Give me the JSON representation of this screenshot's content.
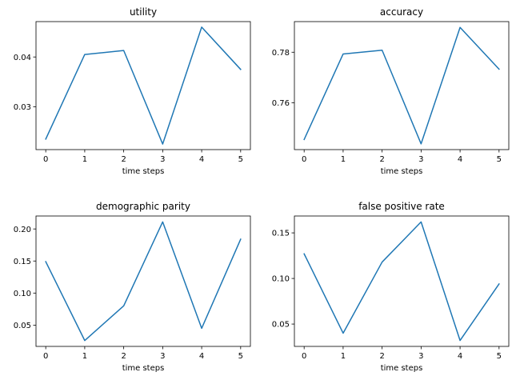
{
  "figure": {
    "background": "#ffffff",
    "line_color": "#1f77b4"
  },
  "chart_data": [
    {
      "type": "line",
      "title": "utility",
      "xlabel": "time steps",
      "ylabel": "",
      "x": [
        0,
        1,
        2,
        3,
        4,
        5
      ],
      "y": [
        0.0235,
        0.0405,
        0.0413,
        0.0225,
        0.046,
        0.0375
      ],
      "xticks": [
        0,
        1,
        2,
        3,
        4,
        5
      ],
      "xlim": [
        -0.25,
        5.25
      ],
      "yticks": [
        0.03,
        0.04
      ],
      "ytick_labels": [
        "0.03",
        "0.04"
      ],
      "ylim": [
        0.02138,
        0.04711
      ],
      "grid": false
    },
    {
      "type": "line",
      "title": "accuracy",
      "xlabel": "time steps",
      "ylabel": "",
      "x": [
        0,
        1,
        2,
        3,
        4,
        5
      ],
      "y": [
        0.7455,
        0.7793,
        0.7808,
        0.7438,
        0.7898,
        0.7733
      ],
      "xticks": [
        0,
        1,
        2,
        3,
        4,
        5
      ],
      "xlim": [
        -0.25,
        5.25
      ],
      "yticks": [
        0.76,
        0.78
      ],
      "ytick_labels": [
        "0.76",
        "0.78"
      ],
      "ylim": [
        0.74152,
        0.7921
      ],
      "grid": false
    },
    {
      "type": "line",
      "title": "demographic parity",
      "xlabel": "time steps",
      "ylabel": "",
      "x": [
        0,
        1,
        2,
        3,
        4,
        5
      ],
      "y": [
        0.149,
        0.026,
        0.08,
        0.211,
        0.045,
        0.184
      ],
      "xticks": [
        0,
        1,
        2,
        3,
        4,
        5
      ],
      "xlim": [
        -0.25,
        5.25
      ],
      "yticks": [
        0.05,
        0.1,
        0.15,
        0.2
      ],
      "ytick_labels": [
        "0.05",
        "0.10",
        "0.15",
        "0.20"
      ],
      "ylim": [
        0.0168,
        0.2202
      ],
      "grid": false
    },
    {
      "type": "line",
      "title": "false positive rate",
      "xlabel": "time steps",
      "ylabel": "",
      "x": [
        0,
        1,
        2,
        3,
        4,
        5
      ],
      "y": [
        0.127,
        0.04,
        0.118,
        0.162,
        0.032,
        0.094
      ],
      "xticks": [
        0,
        1,
        2,
        3,
        4,
        5
      ],
      "xlim": [
        -0.25,
        5.25
      ],
      "yticks": [
        0.05,
        0.1,
        0.15
      ],
      "ytick_labels": [
        "0.05",
        "0.10",
        "0.15"
      ],
      "ylim": [
        0.0255,
        0.1685
      ],
      "grid": false
    }
  ]
}
